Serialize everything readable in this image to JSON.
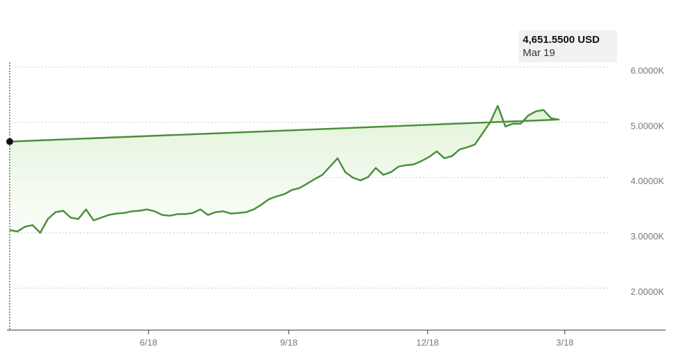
{
  "chart_data": {
    "type": "line",
    "x": [
      "3/19",
      "3/24",
      "3/29",
      "4/3",
      "4/8",
      "4/13",
      "4/18",
      "4/23",
      "4/28",
      "5/3",
      "5/8",
      "5/13",
      "5/18",
      "5/23",
      "5/28",
      "6/2",
      "6/7",
      "6/12",
      "6/17",
      "6/22",
      "6/27",
      "7/2",
      "7/7",
      "7/12",
      "7/17",
      "7/22",
      "7/27",
      "8/1",
      "8/6",
      "8/11",
      "8/16",
      "8/21",
      "8/26",
      "8/31",
      "9/5",
      "9/10",
      "9/15",
      "9/20",
      "9/25",
      "9/30",
      "10/5",
      "10/10",
      "10/15",
      "10/20",
      "10/25",
      "10/30",
      "11/4",
      "11/9",
      "11/14",
      "11/19",
      "11/24",
      "11/29",
      "12/4",
      "12/9",
      "12/14",
      "12/19",
      "12/24",
      "12/29",
      "1/3",
      "1/8",
      "1/13",
      "1/18",
      "1/23",
      "1/28",
      "2/2",
      "2/7",
      "2/12",
      "2/17",
      "2/22",
      "2/27",
      "3/4",
      "3/9",
      "3/14",
      "3/19"
    ],
    "values": [
      3050,
      3025,
      3110,
      3140,
      3000,
      3250,
      3375,
      3400,
      3275,
      3250,
      3425,
      3225,
      3275,
      3325,
      3350,
      3360,
      3390,
      3400,
      3425,
      3390,
      3325,
      3310,
      3340,
      3340,
      3360,
      3425,
      3325,
      3375,
      3390,
      3350,
      3360,
      3375,
      3425,
      3510,
      3610,
      3660,
      3700,
      3775,
      3810,
      3890,
      3975,
      4050,
      4200,
      4350,
      4100,
      4000,
      3950,
      4010,
      4175,
      4050,
      4100,
      4200,
      4225,
      4240,
      4300,
      4375,
      4475,
      4350,
      4390,
      4510,
      4550,
      4600,
      4800,
      5000,
      5300,
      4925,
      4975,
      4975,
      5125,
      5200,
      5225,
      5075,
      5050,
      4651.55
    ],
    "color": "#4a8f3a",
    "xticks": [
      "6/18",
      "9/18",
      "12/18",
      "3/18"
    ],
    "ylim": [
      1240,
      6000
    ],
    "yticks": [
      {
        "value": 2000,
        "label": "2.0000K"
      },
      {
        "value": 3000,
        "label": "3.0000K"
      },
      {
        "value": 4000,
        "label": "4.0000K"
      },
      {
        "value": 5000,
        "label": "5.0000K"
      },
      {
        "value": 6000,
        "label": "6.0000K"
      }
    ],
    "grid": true,
    "annotations": [
      "4,651.5500 USD",
      "Mar 19"
    ]
  }
}
